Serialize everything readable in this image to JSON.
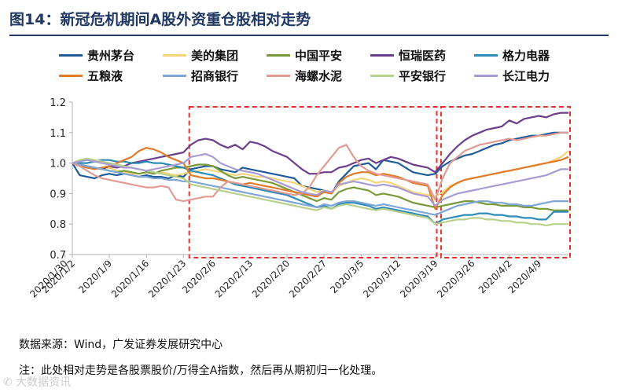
{
  "title": "图14：新冠危机期间A股外资重仓股相对走势",
  "source": "数据来源：Wind，广发证券发展研究中心",
  "note": "注：此处相对走势是各股票股价/万得全A指数，然后再从期初归一化处理。",
  "watermark": "✆ 大数据资讯",
  "colors": {
    "title": "#1f3864",
    "box": "#e8302b",
    "axis": "#b0b0b0"
  },
  "chart_data": {
    "type": "line",
    "title": "新冠危机期间A股外资重仓股相对走势",
    "xlabel": "",
    "ylabel": "",
    "ylim": [
      0.7,
      1.2
    ],
    "yticks": [
      "0.7",
      "0.8",
      "0.9",
      "1.0",
      "1.1",
      "1.2"
    ],
    "x_dates": [
      "2020/1/2",
      "2020/1/3",
      "2020/1/6",
      "2020/1/7",
      "2020/1/8",
      "2020/1/9",
      "2020/1/10",
      "2020/1/13",
      "2020/1/14",
      "2020/1/15",
      "2020/1/16",
      "2020/1/17",
      "2020/1/20",
      "2020/1/21",
      "2020/1/22",
      "2020/1/23",
      "2020/2/3",
      "2020/2/4",
      "2020/2/5",
      "2020/2/6",
      "2020/2/7",
      "2020/2/10",
      "2020/2/11",
      "2020/2/12",
      "2020/2/13",
      "2020/2/14",
      "2020/2/17",
      "2020/2/18",
      "2020/2/19",
      "2020/2/20",
      "2020/2/21",
      "2020/2/24",
      "2020/2/25",
      "2020/2/26",
      "2020/2/27",
      "2020/2/28",
      "2020/3/2",
      "2020/3/3",
      "2020/3/4",
      "2020/3/5",
      "2020/3/6",
      "2020/3/9",
      "2020/3/10",
      "2020/3/11",
      "2020/3/12",
      "2020/3/13",
      "2020/3/16",
      "2020/3/17",
      "2020/3/18",
      "2020/3/19",
      "2020/3/20",
      "2020/3/23",
      "2020/3/24",
      "2020/3/25",
      "2020/3/26",
      "2020/3/27",
      "2020/3/30",
      "2020/3/31",
      "2020/4/1",
      "2020/4/2",
      "2020/4/3",
      "2020/4/7",
      "2020/4/8",
      "2020/4/9",
      "2020/4/10",
      "2020/4/13",
      "2020/4/14",
      "2020/4/15"
    ],
    "x_tick_labels": [
      "2020/1/2",
      "2020/1/9",
      "2020/1/16",
      "2020/1/23",
      "2020/1/30",
      "2020/2/6",
      "2020/2/13",
      "2020/2/20",
      "2020/2/27",
      "2020/3/5",
      "2020/3/12",
      "2020/3/19",
      "2020/3/26",
      "2020/4/2",
      "2020/4/9"
    ],
    "legend": [
      "贵州茅台",
      "美的集团",
      "中国平安",
      "恒瑞医药",
      "格力电器",
      "五粮液",
      "招商银行",
      "海螺水泥",
      "平安银行",
      "长江电力"
    ],
    "series": [
      {
        "name": "贵州茅台",
        "color": "#1f5c99",
        "values": [
          1.0,
          0.96,
          0.955,
          0.95,
          0.96,
          0.965,
          0.96,
          0.965,
          0.96,
          0.955,
          0.96,
          0.955,
          0.955,
          0.95,
          0.96,
          0.955,
          0.98,
          0.985,
          0.99,
          0.99,
          0.98,
          0.975,
          0.97,
          0.985,
          0.98,
          0.975,
          0.97,
          0.965,
          0.96,
          0.955,
          0.95,
          0.925,
          0.92,
          0.915,
          0.91,
          0.9,
          0.94,
          0.965,
          0.99,
          0.995,
          1.0,
          0.98,
          1.01,
          1.005,
          1.0,
          0.985,
          0.97,
          0.965,
          0.96,
          0.965,
          0.99,
          1.005,
          1.015,
          1.025,
          1.03,
          1.04,
          1.05,
          1.06,
          1.065,
          1.075,
          1.08,
          1.085,
          1.09,
          1.09,
          1.095,
          1.1,
          1.1,
          1.1
        ]
      },
      {
        "name": "美的集团",
        "color": "#f5d57a",
        "values": [
          1.0,
          0.995,
          0.99,
          0.985,
          0.98,
          0.985,
          0.975,
          0.97,
          0.965,
          0.965,
          0.97,
          0.965,
          0.97,
          0.965,
          0.96,
          0.965,
          0.97,
          0.975,
          0.98,
          0.975,
          0.97,
          0.965,
          0.96,
          0.965,
          0.96,
          0.955,
          0.955,
          0.95,
          0.945,
          0.94,
          0.935,
          0.925,
          0.915,
          0.905,
          0.91,
          0.9,
          0.925,
          0.935,
          0.945,
          0.95,
          0.945,
          0.935,
          0.94,
          0.935,
          0.925,
          0.915,
          0.905,
          0.9,
          0.895,
          0.89,
          0.905,
          0.925,
          0.935,
          0.945,
          0.95,
          0.955,
          0.96,
          0.965,
          0.97,
          0.975,
          0.98,
          0.985,
          0.99,
          0.995,
          1.0,
          1.01,
          1.02,
          1.04
        ]
      },
      {
        "name": "中国平安",
        "color": "#7a9a3a",
        "values": [
          1.0,
          0.995,
          0.99,
          0.985,
          0.98,
          0.975,
          0.97,
          0.975,
          0.97,
          0.965,
          0.97,
          0.965,
          0.975,
          0.98,
          0.985,
          0.985,
          0.99,
          0.995,
          0.995,
          0.99,
          0.975,
          0.96,
          0.95,
          0.955,
          0.95,
          0.945,
          0.94,
          0.935,
          0.925,
          0.915,
          0.905,
          0.895,
          0.885,
          0.875,
          0.885,
          0.88,
          0.905,
          0.915,
          0.92,
          0.915,
          0.91,
          0.895,
          0.9,
          0.895,
          0.89,
          0.88,
          0.87,
          0.865,
          0.86,
          0.855,
          0.86,
          0.865,
          0.87,
          0.875,
          0.875,
          0.87,
          0.865,
          0.865,
          0.86,
          0.86,
          0.86,
          0.855,
          0.855,
          0.85,
          0.85,
          0.845,
          0.845,
          0.845
        ]
      },
      {
        "name": "恒瑞医药",
        "color": "#6b3f8c",
        "values": [
          1.0,
          0.995,
          0.99,
          0.985,
          0.98,
          0.99,
          0.985,
          0.99,
          1.0,
          1.005,
          1.01,
          1.015,
          1.02,
          1.025,
          1.03,
          1.035,
          1.06,
          1.075,
          1.08,
          1.075,
          1.06,
          1.05,
          1.06,
          1.045,
          1.07,
          1.065,
          1.055,
          1.04,
          1.03,
          1.02,
          1.0,
          0.98,
          0.965,
          0.965,
          0.97,
          0.97,
          0.985,
          0.99,
          1.0,
          1.01,
          1.015,
          1.0,
          1.01,
          1.02,
          1.015,
          1.005,
          0.995,
          0.99,
          0.985,
          0.97,
          1.0,
          1.03,
          1.055,
          1.075,
          1.09,
          1.1,
          1.11,
          1.115,
          1.12,
          1.14,
          1.13,
          1.145,
          1.15,
          1.155,
          1.15,
          1.16,
          1.165,
          1.165
        ]
      },
      {
        "name": "格力电器",
        "color": "#2e8bb7",
        "values": [
          1.0,
          1.0,
          1.0,
          1.005,
          1.01,
          1.01,
          1.005,
          1.005,
          1.0,
          1.0,
          1.005,
          1.0,
          1.0,
          0.995,
          0.99,
          0.985,
          0.975,
          0.97,
          0.965,
          0.96,
          0.95,
          0.94,
          0.93,
          0.925,
          0.92,
          0.915,
          0.91,
          0.905,
          0.9,
          0.895,
          0.885,
          0.875,
          0.865,
          0.855,
          0.86,
          0.85,
          0.865,
          0.87,
          0.87,
          0.865,
          0.86,
          0.85,
          0.855,
          0.85,
          0.845,
          0.84,
          0.835,
          0.83,
          0.825,
          0.8,
          0.815,
          0.82,
          0.825,
          0.83,
          0.83,
          0.835,
          0.835,
          0.83,
          0.83,
          0.825,
          0.825,
          0.82,
          0.82,
          0.815,
          0.815,
          0.84,
          0.84,
          0.84
        ]
      },
      {
        "name": "五粮液",
        "color": "#e07b2a",
        "values": [
          1.0,
          0.99,
          0.985,
          0.98,
          0.985,
          0.99,
          1.0,
          1.01,
          1.02,
          1.04,
          1.05,
          1.045,
          1.035,
          1.02,
          1.01,
          1.0,
          0.96,
          0.955,
          0.95,
          0.95,
          0.945,
          0.94,
          0.935,
          0.93,
          0.935,
          0.93,
          0.925,
          0.92,
          0.915,
          0.91,
          0.905,
          0.9,
          0.895,
          0.89,
          0.905,
          0.9,
          0.935,
          0.955,
          0.965,
          0.97,
          0.97,
          0.96,
          0.965,
          0.96,
          0.955,
          0.945,
          0.935,
          0.93,
          0.925,
          0.85,
          0.895,
          0.92,
          0.935,
          0.945,
          0.95,
          0.955,
          0.96,
          0.965,
          0.97,
          0.975,
          0.98,
          0.985,
          0.99,
          0.995,
          1.0,
          1.005,
          1.01,
          1.02
        ]
      },
      {
        "name": "招商银行",
        "color": "#7ea6d6",
        "values": [
          1.0,
          0.995,
          0.99,
          0.985,
          0.98,
          0.975,
          0.97,
          0.965,
          0.96,
          0.955,
          0.955,
          0.95,
          0.95,
          0.945,
          0.945,
          0.94,
          0.94,
          0.935,
          0.93,
          0.925,
          0.92,
          0.915,
          0.91,
          0.905,
          0.9,
          0.895,
          0.89,
          0.885,
          0.88,
          0.875,
          0.87,
          0.865,
          0.86,
          0.855,
          0.865,
          0.86,
          0.87,
          0.875,
          0.875,
          0.87,
          0.865,
          0.86,
          0.865,
          0.86,
          0.855,
          0.85,
          0.845,
          0.84,
          0.835,
          0.83,
          0.84,
          0.85,
          0.86,
          0.865,
          0.87,
          0.875,
          0.875,
          0.87,
          0.87,
          0.865,
          0.865,
          0.86,
          0.86,
          0.865,
          0.87,
          0.875,
          0.875,
          0.875
        ]
      },
      {
        "name": "海螺水泥",
        "color": "#e29b93",
        "values": [
          1.0,
          0.99,
          0.975,
          0.96,
          0.95,
          0.945,
          0.94,
          0.935,
          0.93,
          0.925,
          0.92,
          0.92,
          0.925,
          0.92,
          0.88,
          0.875,
          0.88,
          0.885,
          0.89,
          0.89,
          0.92,
          0.94,
          0.935,
          0.93,
          0.925,
          0.92,
          0.915,
          0.91,
          0.905,
          0.9,
          0.895,
          0.9,
          0.92,
          0.96,
          0.99,
          1.02,
          1.05,
          1.06,
          1.02,
          0.99,
          0.975,
          0.965,
          0.96,
          0.955,
          0.95,
          0.945,
          0.94,
          0.935,
          0.93,
          0.88,
          0.95,
          1.0,
          1.02,
          1.04,
          1.05,
          1.06,
          1.065,
          1.07,
          1.075,
          1.08,
          1.075,
          1.08,
          1.085,
          1.09,
          1.09,
          1.095,
          1.1,
          1.1
        ]
      },
      {
        "name": "平安银行",
        "color": "#b9d08a",
        "values": [
          1.0,
          1.01,
          1.015,
          1.01,
          1.005,
          1.0,
          0.995,
          0.99,
          0.985,
          0.98,
          0.975,
          0.97,
          0.965,
          0.96,
          0.955,
          0.95,
          0.93,
          0.925,
          0.92,
          0.915,
          0.91,
          0.905,
          0.9,
          0.895,
          0.89,
          0.885,
          0.88,
          0.875,
          0.87,
          0.865,
          0.86,
          0.855,
          0.85,
          0.845,
          0.855,
          0.85,
          0.86,
          0.865,
          0.86,
          0.855,
          0.85,
          0.845,
          0.85,
          0.845,
          0.84,
          0.835,
          0.83,
          0.825,
          0.82,
          0.8,
          0.805,
          0.81,
          0.815,
          0.815,
          0.82,
          0.82,
          0.815,
          0.815,
          0.81,
          0.81,
          0.805,
          0.805,
          0.8,
          0.8,
          0.795,
          0.8,
          0.8,
          0.8
        ]
      },
      {
        "name": "长江电力",
        "color": "#a99bd3",
        "values": [
          1.0,
          1.005,
          1.01,
          1.005,
          1.0,
          0.995,
          0.99,
          0.985,
          0.985,
          0.98,
          0.975,
          0.98,
          0.985,
          0.99,
          0.995,
          1.0,
          1.02,
          1.025,
          1.03,
          1.02,
          1.0,
          0.99,
          0.98,
          0.975,
          0.97,
          0.965,
          0.955,
          0.945,
          0.935,
          0.925,
          0.915,
          0.905,
          0.9,
          0.895,
          0.91,
          0.905,
          0.93,
          0.935,
          0.94,
          0.935,
          0.93,
          0.925,
          0.93,
          0.925,
          0.92,
          0.91,
          0.9,
          0.895,
          0.89,
          0.86,
          0.88,
          0.89,
          0.9,
          0.905,
          0.91,
          0.915,
          0.92,
          0.925,
          0.93,
          0.935,
          0.94,
          0.945,
          0.95,
          0.955,
          0.96,
          0.97,
          0.98,
          0.98
        ]
      }
    ],
    "annotations": [
      {
        "type": "dashed-box",
        "from": "2020/2/3",
        "to": "2020/3/19"
      },
      {
        "type": "dashed-box",
        "from": "2020/3/20",
        "to": "2020/4/15"
      }
    ],
    "grid": false,
    "legend_position": "top"
  }
}
